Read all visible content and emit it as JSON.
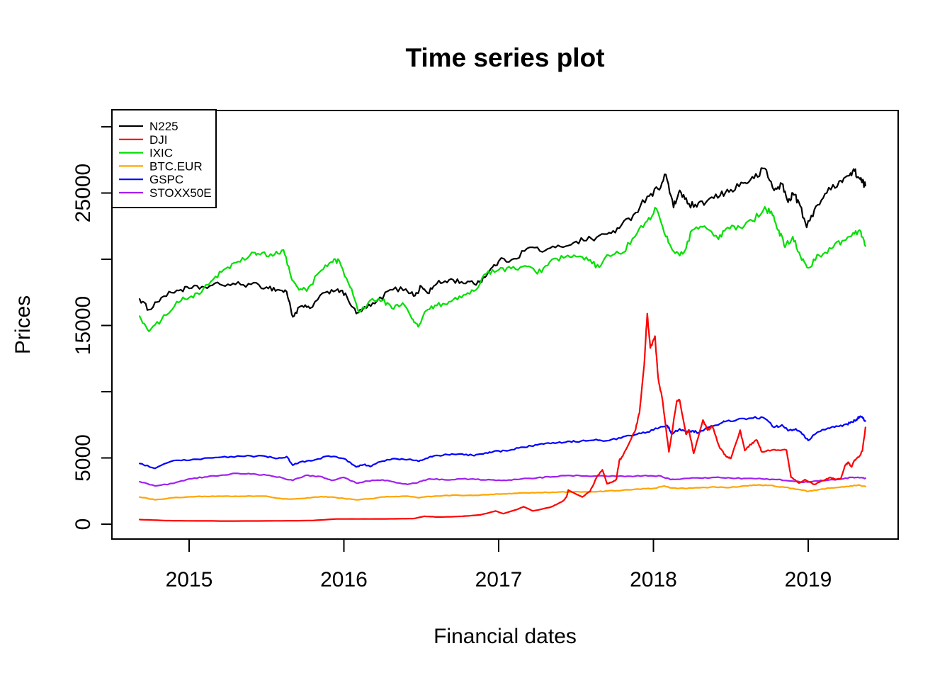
{
  "colors": {
    "background": "#ffffff",
    "axis": "#000000",
    "black_series": "#000000",
    "red_series": "#ff0000",
    "green_series": "#00e000",
    "orange_series": "#ffa500",
    "blue_series": "#0000ff",
    "purple_series": "#a020f0"
  },
  "chart_data": {
    "type": "line",
    "title": "Time series plot",
    "xlabel": "Financial dates",
    "ylabel": "Prices",
    "grid": false,
    "legend_position": "top-left",
    "x_axis": {
      "ticks": [
        2015,
        2016,
        2017,
        2018,
        2019
      ],
      "tick_labels": [
        "2015",
        "2016",
        "2017",
        "2018",
        "2019"
      ],
      "range_years": [
        2014.68,
        2019.37
      ]
    },
    "y_axis": {
      "ticks": [
        0,
        5000,
        10000,
        15000,
        20000,
        25000,
        30000
      ],
      "labeled_ticks": [
        0,
        5000,
        15000,
        25000
      ],
      "ylim": [
        0,
        30000
      ]
    },
    "legend": [
      {
        "label": "N225",
        "color": "#000000"
      },
      {
        "label": "DJI",
        "color": "#ff0000"
      },
      {
        "label": "IXIC",
        "color": "#00e000"
      },
      {
        "label": "BTC.EUR",
        "color": "#ffa500"
      },
      {
        "label": "GSPC",
        "color": "#0000ff"
      },
      {
        "label": "STOXX50E",
        "color": "#a020f0"
      }
    ],
    "series": [
      {
        "name": "N225",
        "color": "#000000",
        "x": [
          2014.68,
          2014.74,
          2014.82,
          2014.92,
          2015.0,
          2015.1,
          2015.2,
          2015.3,
          2015.4,
          2015.5,
          2015.57,
          2015.63,
          2015.67,
          2015.72,
          2015.78,
          2015.88,
          2015.96,
          2016.02,
          2016.08,
          2016.12,
          2016.2,
          2016.3,
          2016.4,
          2016.46,
          2016.5,
          2016.54,
          2016.6,
          2016.68,
          2016.76,
          2016.84,
          2016.88,
          2016.94,
          2017.0,
          2017.1,
          2017.2,
          2017.3,
          2017.4,
          2017.5,
          2017.6,
          2017.7,
          2017.78,
          2017.87,
          2017.96,
          2018.03,
          2018.08,
          2018.13,
          2018.17,
          2018.22,
          2018.28,
          2018.35,
          2018.43,
          2018.5,
          2018.58,
          2018.65,
          2018.72,
          2018.78,
          2018.83,
          2018.87,
          2018.9,
          2018.94,
          2018.99,
          2019.05,
          2019.12,
          2019.2,
          2019.26,
          2019.3,
          2019.33,
          2019.35,
          2019.37
        ],
        "y": [
          17000,
          16200,
          17100,
          17650,
          17800,
          17900,
          18100,
          18100,
          18100,
          17900,
          17700,
          17550,
          15650,
          16450,
          16300,
          17500,
          17750,
          17150,
          15900,
          16200,
          16650,
          17700,
          17750,
          17250,
          17950,
          17450,
          18150,
          18450,
          18300,
          18150,
          18350,
          19100,
          19850,
          20050,
          20900,
          20650,
          20950,
          21350,
          21550,
          21900,
          22350,
          23350,
          24750,
          25300,
          26400,
          23900,
          25200,
          24200,
          23950,
          24450,
          24800,
          25250,
          25750,
          26100,
          26850,
          25200,
          25700,
          24300,
          25000,
          24300,
          22400,
          24000,
          25000,
          25900,
          26300,
          26650,
          26100,
          25800,
          25550
        ]
      },
      {
        "name": "IXIC",
        "color": "#00e000",
        "x": [
          2014.68,
          2014.74,
          2014.82,
          2014.92,
          2015.0,
          2015.08,
          2015.17,
          2015.25,
          2015.33,
          2015.42,
          2015.46,
          2015.54,
          2015.61,
          2015.66,
          2015.7,
          2015.76,
          2015.84,
          2015.92,
          2015.97,
          2016.04,
          2016.1,
          2016.17,
          2016.25,
          2016.31,
          2016.38,
          2016.44,
          2016.48,
          2016.53,
          2016.6,
          2016.68,
          2016.76,
          2016.84,
          2016.92,
          2017.0,
          2017.08,
          2017.17,
          2017.25,
          2017.33,
          2017.42,
          2017.5,
          2017.58,
          2017.65,
          2017.71,
          2017.79,
          2017.88,
          2017.96,
          2018.02,
          2018.08,
          2018.13,
          2018.19,
          2018.25,
          2018.33,
          2018.42,
          2018.48,
          2018.56,
          2018.64,
          2018.72,
          2018.77,
          2018.81,
          2018.85,
          2018.9,
          2018.95,
          2019.0,
          2019.07,
          2019.15,
          2019.22,
          2019.29,
          2019.34,
          2019.37
        ],
        "y": [
          15700,
          14550,
          15400,
          16800,
          17100,
          17500,
          18700,
          19400,
          19800,
          20500,
          20350,
          20250,
          20700,
          18600,
          17900,
          17600,
          19000,
          19800,
          19900,
          17900,
          16000,
          16900,
          16900,
          16300,
          16700,
          15500,
          14900,
          16100,
          16500,
          16800,
          17100,
          17600,
          18900,
          19200,
          19300,
          19500,
          18900,
          19800,
          20100,
          20200,
          19900,
          19400,
          20300,
          20400,
          21700,
          22900,
          23800,
          21700,
          20600,
          20400,
          22200,
          22500,
          21500,
          22400,
          22400,
          22900,
          23950,
          23300,
          22200,
          20900,
          21700,
          20200,
          19350,
          20300,
          20800,
          21400,
          22000,
          22100,
          21000
        ]
      },
      {
        "name": "GSPC",
        "color": "#0000ff",
        "x": [
          2014.68,
          2014.78,
          2014.9,
          2015.0,
          2015.15,
          2015.27,
          2015.4,
          2015.5,
          2015.56,
          2015.63,
          2015.67,
          2015.72,
          2015.8,
          2015.9,
          2016.0,
          2016.08,
          2016.13,
          2016.17,
          2016.23,
          2016.33,
          2016.42,
          2016.48,
          2016.52,
          2016.58,
          2016.67,
          2016.75,
          2016.83,
          2016.9,
          2016.96,
          2017.04,
          2017.13,
          2017.21,
          2017.29,
          2017.38,
          2017.46,
          2017.53,
          2017.63,
          2017.7,
          2017.79,
          2017.88,
          2017.96,
          2018.04,
          2018.09,
          2018.12,
          2018.17,
          2018.21,
          2018.25,
          2018.29,
          2018.35,
          2018.42,
          2018.46,
          2018.54,
          2018.63,
          2018.71,
          2018.78,
          2018.83,
          2018.87,
          2018.92,
          2018.96,
          2019.0,
          2019.06,
          2019.12,
          2019.17,
          2019.23,
          2019.27,
          2019.31,
          2019.33,
          2019.35,
          2019.37
        ],
        "y": [
          4580,
          4210,
          4800,
          4820,
          5000,
          5100,
          5150,
          5100,
          4950,
          5100,
          4450,
          4700,
          4800,
          5150,
          4950,
          4320,
          4500,
          4350,
          4700,
          4950,
          4900,
          4750,
          4900,
          5150,
          5250,
          5300,
          5200,
          5300,
          5450,
          5550,
          5750,
          5900,
          6050,
          6150,
          6250,
          6260,
          6400,
          6300,
          6500,
          6750,
          6950,
          7300,
          7450,
          6800,
          7200,
          6950,
          7050,
          6900,
          7310,
          7500,
          7740,
          7890,
          8000,
          8050,
          7310,
          7500,
          7050,
          7200,
          6800,
          6320,
          6950,
          7200,
          7310,
          7500,
          7630,
          7890,
          8100,
          8050,
          7790
        ]
      },
      {
        "name": "STOXX50E",
        "color": "#a020f0",
        "x": [
          2014.68,
          2014.78,
          2014.9,
          2015.0,
          2015.1,
          2015.2,
          2015.3,
          2015.4,
          2015.5,
          2015.6,
          2015.67,
          2015.75,
          2015.85,
          2015.92,
          2016.0,
          2016.08,
          2016.15,
          2016.25,
          2016.34,
          2016.41,
          2016.48,
          2016.55,
          2016.65,
          2016.75,
          2016.85,
          2016.95,
          2017.05,
          2017.15,
          2017.25,
          2017.35,
          2017.45,
          2017.55,
          2017.65,
          2017.75,
          2017.85,
          2017.95,
          2018.05,
          2018.11,
          2018.2,
          2018.3,
          2018.4,
          2018.5,
          2018.6,
          2018.7,
          2018.8,
          2018.9,
          2018.97,
          2019.04,
          2019.12,
          2019.2,
          2019.28,
          2019.33,
          2019.37
        ],
        "y": [
          3210,
          2890,
          3080,
          3420,
          3560,
          3680,
          3840,
          3780,
          3700,
          3500,
          3300,
          3680,
          3600,
          3300,
          3530,
          3100,
          3250,
          3350,
          3120,
          3000,
          3150,
          3420,
          3350,
          3420,
          3380,
          3350,
          3300,
          3420,
          3500,
          3580,
          3680,
          3630,
          3650,
          3630,
          3620,
          3680,
          3630,
          3370,
          3450,
          3480,
          3530,
          3480,
          3450,
          3420,
          3370,
          3250,
          3160,
          3250,
          3300,
          3380,
          3530,
          3500,
          3470
        ]
      },
      {
        "name": "BTC.EUR",
        "color": "#ffa500",
        "x": [
          2014.68,
          2014.78,
          2014.9,
          2015.0,
          2015.1,
          2015.2,
          2015.3,
          2015.4,
          2015.5,
          2015.57,
          2015.65,
          2015.75,
          2015.85,
          2015.92,
          2016.0,
          2016.08,
          2016.17,
          2016.25,
          2016.34,
          2016.42,
          2016.48,
          2016.55,
          2016.65,
          2016.75,
          2016.85,
          2016.95,
          2017.05,
          2017.15,
          2017.25,
          2017.35,
          2017.45,
          2017.55,
          2017.65,
          2017.7,
          2017.8,
          2017.9,
          2018.0,
          2018.07,
          2018.11,
          2018.2,
          2018.3,
          2018.4,
          2018.5,
          2018.6,
          2018.67,
          2018.75,
          2018.85,
          2018.95,
          2019.0,
          2019.08,
          2019.15,
          2019.25,
          2019.32,
          2019.37
        ],
        "y": [
          2050,
          1840,
          2000,
          2060,
          2100,
          2110,
          2110,
          2120,
          2110,
          1950,
          1890,
          1950,
          2080,
          2050,
          1940,
          1840,
          1920,
          2050,
          2090,
          2100,
          2000,
          2090,
          2170,
          2170,
          2180,
          2250,
          2280,
          2360,
          2390,
          2410,
          2430,
          2440,
          2470,
          2500,
          2560,
          2650,
          2700,
          2890,
          2740,
          2700,
          2750,
          2800,
          2780,
          2900,
          2950,
          2930,
          2780,
          2600,
          2470,
          2630,
          2740,
          2850,
          2950,
          2840
        ]
      },
      {
        "name": "DJI",
        "color": "#ff0000",
        "x": [
          2014.68,
          2014.85,
          2015.0,
          2015.3,
          2015.6,
          2015.8,
          2015.95,
          2016.1,
          2016.3,
          2016.45,
          2016.52,
          2016.6,
          2016.7,
          2016.8,
          2016.88,
          2016.93,
          2016.98,
          2017.03,
          2017.13,
          2017.16,
          2017.22,
          2017.33,
          2017.38,
          2017.42,
          2017.44,
          2017.45,
          2017.49,
          2017.54,
          2017.59,
          2017.64,
          2017.67,
          2017.7,
          2017.73,
          2017.76,
          2017.78,
          2017.8,
          2017.88,
          2017.91,
          2017.94,
          2017.96,
          2017.98,
          2018.01,
          2018.03,
          2018.06,
          2018.1,
          2018.15,
          2018.17,
          2018.21,
          2018.23,
          2018.26,
          2018.32,
          2018.35,
          2018.38,
          2018.43,
          2018.47,
          2018.5,
          2018.56,
          2018.59,
          2018.64,
          2018.67,
          2018.7,
          2018.78,
          2018.86,
          2018.88,
          2018.89,
          2018.94,
          2018.98,
          2019.04,
          2019.1,
          2019.14,
          2019.17,
          2019.21,
          2019.24,
          2019.26,
          2019.28,
          2019.3,
          2019.33,
          2019.35,
          2019.37
        ],
        "y": [
          350,
          270,
          250,
          235,
          250,
          280,
          390,
          390,
          400,
          420,
          600,
          540,
          560,
          620,
          700,
          840,
          1000,
          790,
          1160,
          1320,
          1000,
          1260,
          1530,
          1790,
          2100,
          2580,
          2320,
          2050,
          2470,
          3680,
          4100,
          3050,
          3160,
          3370,
          4840,
          5100,
          7000,
          8400,
          12000,
          15900,
          13300,
          14200,
          11100,
          9250,
          5460,
          9250,
          9350,
          6800,
          7110,
          5350,
          7860,
          7100,
          7380,
          5720,
          5100,
          4970,
          7100,
          5560,
          6150,
          6320,
          5460,
          5630,
          5600,
          4160,
          3530,
          3100,
          3370,
          3000,
          3300,
          3530,
          3420,
          3400,
          4470,
          4680,
          4320,
          4840,
          5100,
          5530,
          7310
        ]
      }
    ]
  }
}
